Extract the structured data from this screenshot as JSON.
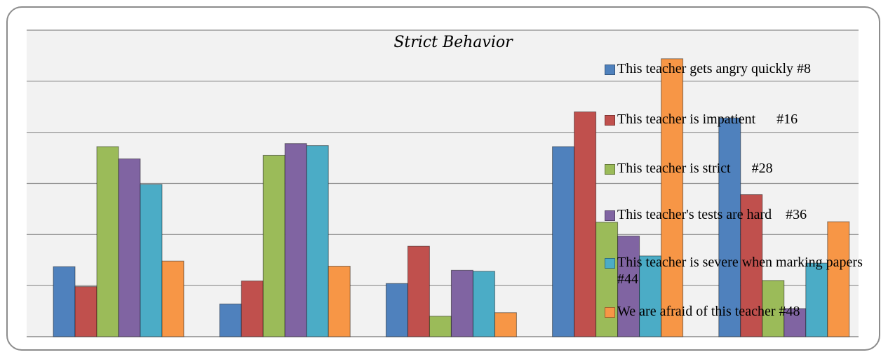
{
  "chart_data": {
    "type": "bar",
    "title": "Strict Behavior",
    "categories": [
      "",
      "",
      "",
      "",
      ""
    ],
    "ylim": [
      0,
      6
    ],
    "grid": true,
    "legend_position": "right-overlay",
    "series": [
      {
        "name": "This teacher gets angry quickly #8",
        "color": "#4f81bd",
        "values": [
          1.37,
          0.64,
          1.04,
          3.72,
          4.28
        ]
      },
      {
        "name": "This teacher is impatient      #16",
        "color": "#c0504d",
        "values": [
          0.98,
          1.09,
          1.77,
          4.4,
          2.78
        ]
      },
      {
        "name": "This teacher is strict      #28",
        "color": "#9bbb59",
        "values": [
          3.72,
          3.55,
          0.4,
          2.24,
          1.1
        ]
      },
      {
        "name": "This teacher's tests are hard    #36",
        "color": "#8064a2",
        "values": [
          3.48,
          3.78,
          1.3,
          1.97,
          0.55
        ]
      },
      {
        "name": "This teacher is severe when marking papers #44",
        "color": "#4bacc6",
        "values": [
          2.98,
          3.74,
          1.28,
          1.58,
          1.44
        ]
      },
      {
        "name": "We are afraid of this teacher #48",
        "color": "#f79646",
        "values": [
          1.48,
          1.38,
          0.47,
          5.44,
          2.25
        ]
      }
    ]
  }
}
